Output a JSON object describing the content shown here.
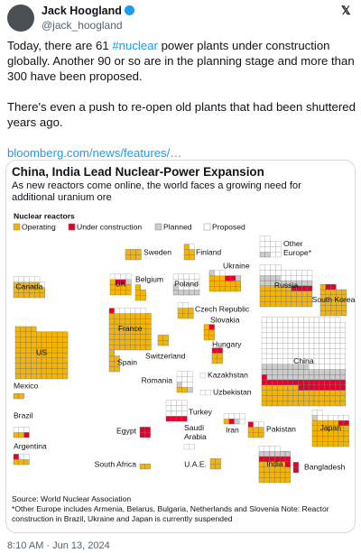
{
  "header": {
    "name": "Jack Hoogland",
    "handle": "@jack_hoogland"
  },
  "tweet": {
    "paragraph1": [
      "Today, there are 61 ",
      "#nuclear",
      " power plants under construction globally. Another 90 or so are in the planning stage and more than 300 have been proposed."
    ],
    "paragraph2": "There's even a push to re-open old plants that had been shuttered years ago.",
    "link": "bloomberg.com/news/features/…",
    "timestamp": "8:10 AM · Jun 13, 2024"
  },
  "chart_data": {
    "type": "waffle",
    "title": "China, India Lead Nuclear-Power Expansion",
    "subtitle": "As new reactors come online, the world faces a growing need for additional uranium ore",
    "legend_title": "Nuclear reactors",
    "series": [
      {
        "name": "Operating",
        "color": "#f4b400"
      },
      {
        "name": "Under construction",
        "color": "#e4002b"
      },
      {
        "name": "Planned",
        "color": "#cccccc"
      },
      {
        "name": "Proposed",
        "color": "#ffffff"
      }
    ],
    "countries": [
      {
        "name": "Canada",
        "values": [
          17,
          0,
          0,
          6
        ]
      },
      {
        "name": "US",
        "values": [
          94,
          0,
          0,
          0
        ]
      },
      {
        "name": "Mexico",
        "values": [
          2,
          0,
          0,
          0
        ]
      },
      {
        "name": "Brazil",
        "values": [
          2,
          1,
          0,
          3
        ]
      },
      {
        "name": "Argentina",
        "values": [
          3,
          1,
          0,
          2
        ]
      },
      {
        "name": "UK",
        "values": [
          9,
          2,
          1,
          4
        ]
      },
      {
        "name": "Belgium",
        "values": [
          5,
          0,
          0,
          0
        ]
      },
      {
        "name": "France",
        "values": [
          56,
          1,
          0,
          6
        ]
      },
      {
        "name": "Spain",
        "values": [
          7,
          0,
          0,
          0
        ]
      },
      {
        "name": "Sweden",
        "values": [
          6,
          0,
          0,
          0
        ]
      },
      {
        "name": "Finland",
        "values": [
          5,
          0,
          0,
          1
        ]
      },
      {
        "name": "Poland",
        "values": [
          0,
          0,
          6,
          14
        ]
      },
      {
        "name": "Ukraine",
        "values": [
          15,
          2,
          2,
          2
        ]
      },
      {
        "name": "Czech Republic",
        "values": [
          6,
          0,
          0,
          2
        ]
      },
      {
        "name": "Switzerland",
        "values": [
          4,
          0,
          0,
          0
        ]
      },
      {
        "name": "Slovakia",
        "values": [
          5,
          1,
          0,
          0
        ]
      },
      {
        "name": "Hungary",
        "values": [
          4,
          2,
          0,
          0
        ]
      },
      {
        "name": "Romania",
        "values": [
          2,
          0,
          2,
          8
        ]
      },
      {
        "name": "Kazakhstan",
        "values": [
          0,
          0,
          0,
          1
        ]
      },
      {
        "name": "Uzbekistan",
        "values": [
          0,
          0,
          0,
          2
        ]
      },
      {
        "name": "Other Europe*",
        "values": [
          0,
          0,
          2,
          12
        ]
      },
      {
        "name": "Russia",
        "values": [
          36,
          4,
          14,
          20
        ]
      },
      {
        "name": "South Korea",
        "values": [
          26,
          2,
          0,
          0
        ]
      },
      {
        "name": "China",
        "values": [
          55,
          26,
          40,
          150
        ]
      },
      {
        "name": "Turkey",
        "values": [
          0,
          4,
          0,
          12
        ]
      },
      {
        "name": "Saudi Arabia",
        "values": [
          0,
          0,
          0,
          2
        ]
      },
      {
        "name": "Egypt",
        "values": [
          0,
          4,
          0,
          0
        ]
      },
      {
        "name": "Iran",
        "values": [
          1,
          1,
          1,
          5
        ]
      },
      {
        "name": "Pakistan",
        "values": [
          6,
          1,
          0,
          2
        ]
      },
      {
        "name": "U.A.E.",
        "values": [
          4,
          0,
          0,
          0
        ]
      },
      {
        "name": "India",
        "values": [
          23,
          7,
          6,
          4
        ]
      },
      {
        "name": "Bangladesh",
        "values": [
          0,
          2,
          0,
          0
        ]
      },
      {
        "name": "Japan",
        "values": [
          33,
          2,
          1,
          8
        ]
      },
      {
        "name": "South Africa",
        "values": [
          2,
          0,
          0,
          0
        ]
      }
    ],
    "source": "Source: World Nuclear Association",
    "note": "*Other Europe includes Armenia, Belarus, Bulgaria, Netherlands and Slovenia Note: Reactor construction in Brazil, Ukraine and Japan is currently suspended"
  }
}
